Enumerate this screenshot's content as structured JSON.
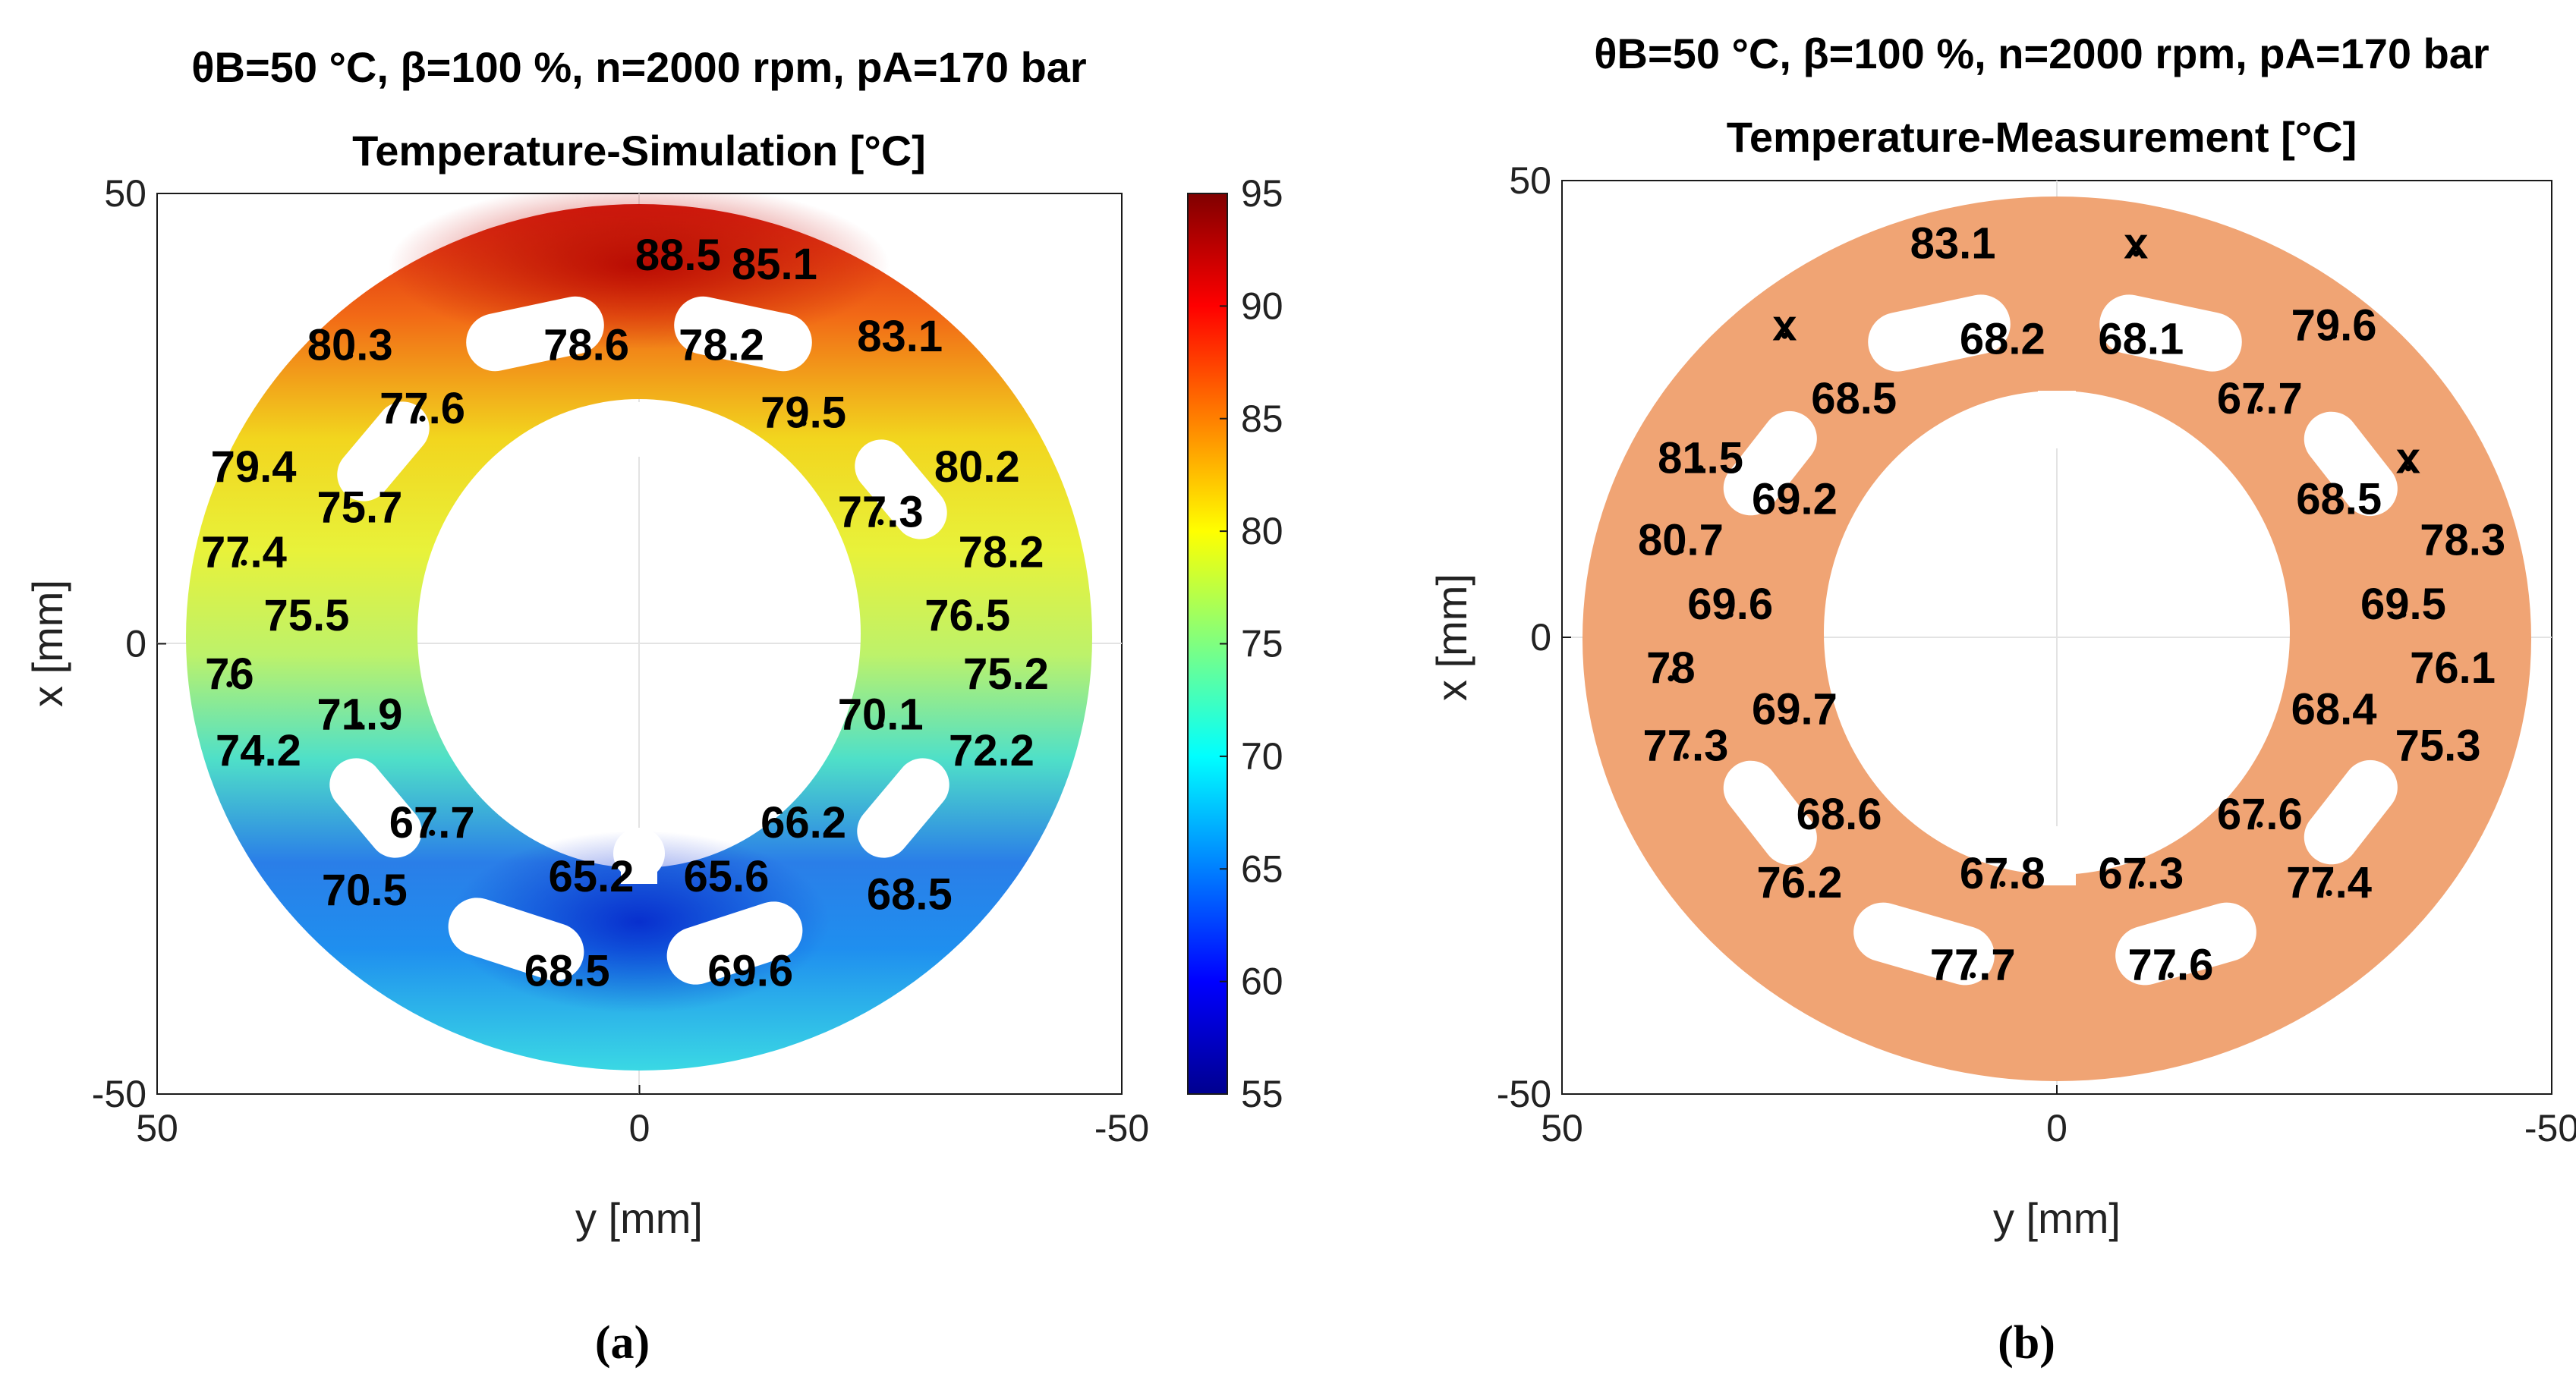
{
  "chart_data": [
    {
      "type": "heatmap",
      "panel": "(a)",
      "title_line1": "θB=50 °C, β=100 %, n=2000 rpm, pA=170 bar",
      "title_line2": "Temperature-Simulation [°C]",
      "xlabel": "y [mm]",
      "ylabel": "x [mm]",
      "xlim": [
        50,
        -50
      ],
      "ylim": [
        -50,
        50
      ],
      "xticks": [
        "50",
        "0",
        "-50"
      ],
      "yticks": [
        "50",
        "0",
        "-50"
      ],
      "colorbar": {
        "range": [
          55,
          95
        ],
        "ticks": [
          "95",
          "90",
          "85",
          "80",
          "75",
          "70",
          "65",
          "60",
          "55"
        ]
      },
      "annotations": [
        {
          "label": "88.5",
          "y": -4.0,
          "x": 42.0
        },
        {
          "label": "85.1",
          "y": -14.0,
          "x": 41.0
        },
        {
          "label": "83.1",
          "y": -27.0,
          "x": 33.0
        },
        {
          "label": "80.3",
          "y": 30.0,
          "x": 32.0
        },
        {
          "label": "78.6",
          "y": 5.5,
          "x": 32.0
        },
        {
          "label": "78.2",
          "y": -8.5,
          "x": 32.0
        },
        {
          "label": "79.5",
          "y": -17.0,
          "x": 24.5
        },
        {
          "label": "77.6",
          "y": 22.5,
          "x": 25.0
        },
        {
          "label": "80.2",
          "y": -35.0,
          "x": 18.5
        },
        {
          "label": "79.4",
          "y": 40.0,
          "x": 18.5
        },
        {
          "label": "77.3",
          "y": -25.0,
          "x": 13.5
        },
        {
          "label": "75.7",
          "y": 29.0,
          "x": 14.0
        },
        {
          "label": "78.2",
          "y": -37.5,
          "x": 9.0
        },
        {
          "label": "77.4",
          "y": 41.0,
          "x": 9.0
        },
        {
          "label": "76.5",
          "y": -34.0,
          "x": 2.0
        },
        {
          "label": "75.5",
          "y": 34.5,
          "x": 2.0
        },
        {
          "label": "75.2",
          "y": -38.0,
          "x": -4.5
        },
        {
          "label": "76",
          "y": 42.5,
          "x": -4.5
        },
        {
          "label": "70.1",
          "y": -25.0,
          "x": -9.0
        },
        {
          "label": "71.9",
          "y": 29.0,
          "x": -9.0
        },
        {
          "label": "72.2",
          "y": -36.5,
          "x": -13.0
        },
        {
          "label": "74.2",
          "y": 39.5,
          "x": -13.0
        },
        {
          "label": "66.2",
          "y": -17.0,
          "x": -21.0
        },
        {
          "label": "67.7",
          "y": 21.5,
          "x": -21.0
        },
        {
          "label": "68.5",
          "y": -28.0,
          "x": -29.0
        },
        {
          "label": "65.2",
          "y": 5.0,
          "x": -27.0
        },
        {
          "label": "65.6",
          "y": -9.0,
          "x": -27.0
        },
        {
          "label": "70.5",
          "y": 28.5,
          "x": -28.5
        },
        {
          "label": "68.5",
          "y": 7.5,
          "x": -37.5
        },
        {
          "label": "69.6",
          "y": -11.5,
          "x": -37.5
        }
      ]
    },
    {
      "type": "heatmap",
      "panel": "(b)",
      "title_line1": "θB=50 °C, β=100 %, n=2000 rpm, pA=170 bar",
      "title_line2": "Temperature-Measurement [°C]",
      "xlabel": "y [mm]",
      "ylabel": "x [mm]",
      "xlim": [
        50,
        -50
      ],
      "ylim": [
        -50,
        50
      ],
      "xticks": [
        "50",
        "0",
        "-50"
      ],
      "yticks": [
        "50",
        "0",
        "-50"
      ],
      "annotations": [
        {
          "label": "83.1",
          "y": 10.5,
          "x": 42.0
        },
        {
          "label": "x",
          "y": -8.0,
          "x": 42.0
        },
        {
          "label": "x",
          "y": 27.5,
          "x": 33.0
        },
        {
          "label": "79.6",
          "y": -28.0,
          "x": 33.0
        },
        {
          "label": "68.2",
          "y": 5.5,
          "x": 31.5
        },
        {
          "label": "68.1",
          "y": -8.5,
          "x": 31.5
        },
        {
          "label": "68.5",
          "y": 20.5,
          "x": 25.0
        },
        {
          "label": "67.7",
          "y": -20.5,
          "x": 25.0
        },
        {
          "label": "81.5",
          "y": 36.0,
          "x": 18.5
        },
        {
          "label": "x",
          "y": -35.5,
          "x": 18.5
        },
        {
          "label": "69.2",
          "y": 26.5,
          "x": 14.0
        },
        {
          "label": "68.5",
          "y": -28.5,
          "x": 14.0
        },
        {
          "label": "80.7",
          "y": 38.0,
          "x": 9.5
        },
        {
          "label": "78.3",
          "y": -41.0,
          "x": 9.5
        },
        {
          "label": "69.6",
          "y": 33.0,
          "x": 2.5
        },
        {
          "label": "69.5",
          "y": -35.0,
          "x": 2.5
        },
        {
          "label": "78",
          "y": 39.0,
          "x": -4.5
        },
        {
          "label": "76.1",
          "y": -40.0,
          "x": -4.5
        },
        {
          "label": "69.7",
          "y": 26.5,
          "x": -9.0
        },
        {
          "label": "68.4",
          "y": -28.0,
          "x": -9.0
        },
        {
          "label": "77.3",
          "y": 37.5,
          "x": -13.0
        },
        {
          "label": "75.3",
          "y": -38.5,
          "x": -13.0
        },
        {
          "label": "68.6",
          "y": 22.0,
          "x": -20.5
        },
        {
          "label": "67.6",
          "y": -20.5,
          "x": -20.5
        },
        {
          "label": "76.2",
          "y": 26.0,
          "x": -28.0
        },
        {
          "label": "67.8",
          "y": 5.5,
          "x": -27.0
        },
        {
          "label": "67.3",
          "y": -8.5,
          "x": -27.0
        },
        {
          "label": "77.4",
          "y": -27.5,
          "x": -28.0
        },
        {
          "label": "77.7",
          "y": 8.5,
          "x": -37.0
        },
        {
          "label": "77.6",
          "y": -11.5,
          "x": -37.0
        }
      ]
    }
  ],
  "colors": {
    "measurement_fill": "#f0a474",
    "axis": "#1a1a1a",
    "grid": "#e3e3e3"
  }
}
